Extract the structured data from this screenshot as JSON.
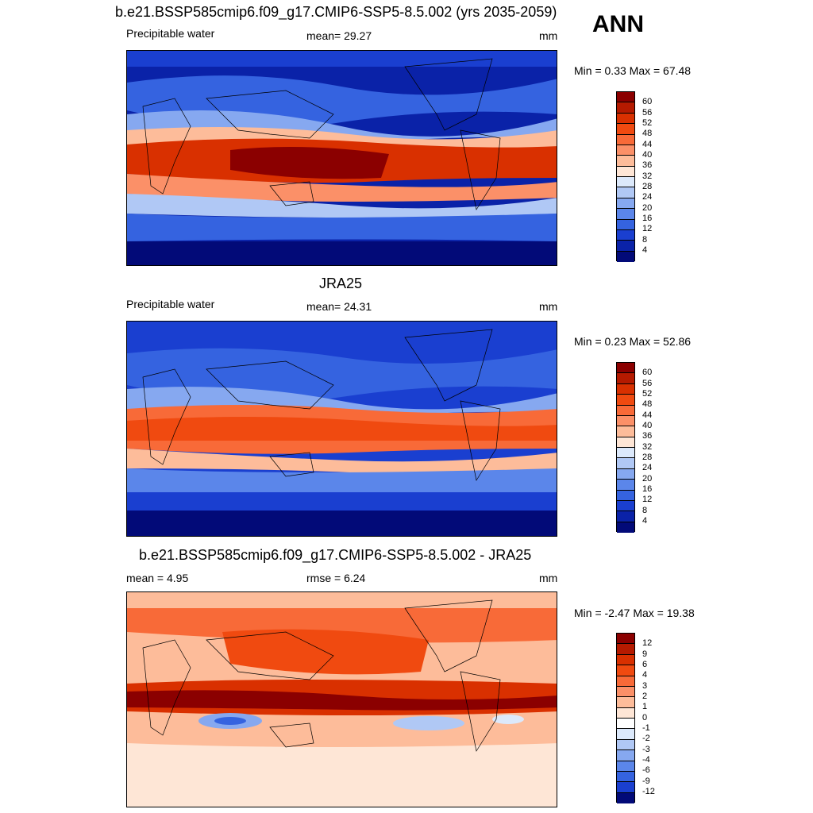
{
  "ann_label": "ANN",
  "panels": [
    {
      "title": "b.e21.BSSP585cmip6.f09_g17.CMIP6-SSP5-8.5.002 (yrs 2035-2059)",
      "left_label": "Precipitable water",
      "center_label": "mean=  29.27",
      "right_label": "mm",
      "minmax": "Min =   0.33 Max =  67.48",
      "levels": [
        "60",
        "56",
        "52",
        "48",
        "44",
        "40",
        "36",
        "32",
        "28",
        "24",
        "20",
        "16",
        "12",
        "8",
        "4"
      ],
      "colors": [
        "#8b0000",
        "#b51a00",
        "#d93000",
        "#f04a10",
        "#f86a38",
        "#fb9068",
        "#fdbc9a",
        "#fee6d6",
        "#dce9fb",
        "#b0c8f5",
        "#86a8f0",
        "#5b86ea",
        "#3563e0",
        "#1a3fd0",
        "#0a22a8",
        "#020a78"
      ],
      "map_colormap": "cmip_precipitable_water"
    },
    {
      "title": "JRA25",
      "left_label": "Precipitable water",
      "center_label": "mean=  24.31",
      "right_label": "mm",
      "minmax": "Min =   0.23 Max =  52.86",
      "levels": [
        "60",
        "56",
        "52",
        "48",
        "44",
        "40",
        "36",
        "32",
        "28",
        "24",
        "20",
        "16",
        "12",
        "8",
        "4"
      ],
      "colors": [
        "#8b0000",
        "#b51a00",
        "#d93000",
        "#f04a10",
        "#f86a38",
        "#fb9068",
        "#fdbc9a",
        "#fee6d6",
        "#dce9fb",
        "#b0c8f5",
        "#86a8f0",
        "#5b86ea",
        "#3563e0",
        "#1a3fd0",
        "#0a22a8",
        "#020a78"
      ],
      "map_colormap": "jra25_precipitable_water"
    },
    {
      "title": "b.e21.BSSP585cmip6.f09_g17.CMIP6-SSP5-8.5.002 - JRA25",
      "left_label": "mean =   4.95",
      "center_label": "rmse =   6.24",
      "right_label": "mm",
      "minmax": "Min =  -2.47 Max =  19.38",
      "levels": [
        "12",
        "9",
        "6",
        "4",
        "3",
        "2",
        "1",
        "0",
        "-1",
        "-2",
        "-3",
        "-4",
        "-6",
        "-9",
        "-12"
      ],
      "colors": [
        "#8b0000",
        "#b51a00",
        "#d93000",
        "#f04a10",
        "#f86a38",
        "#fb9068",
        "#fdbc9a",
        "#fee6d6",
        "#ffffff",
        "#dce9fb",
        "#b0c8f5",
        "#86a8f0",
        "#5b86ea",
        "#3563e0",
        "#1a3fd0",
        "#020a78"
      ],
      "map_colormap": "difference"
    }
  ]
}
